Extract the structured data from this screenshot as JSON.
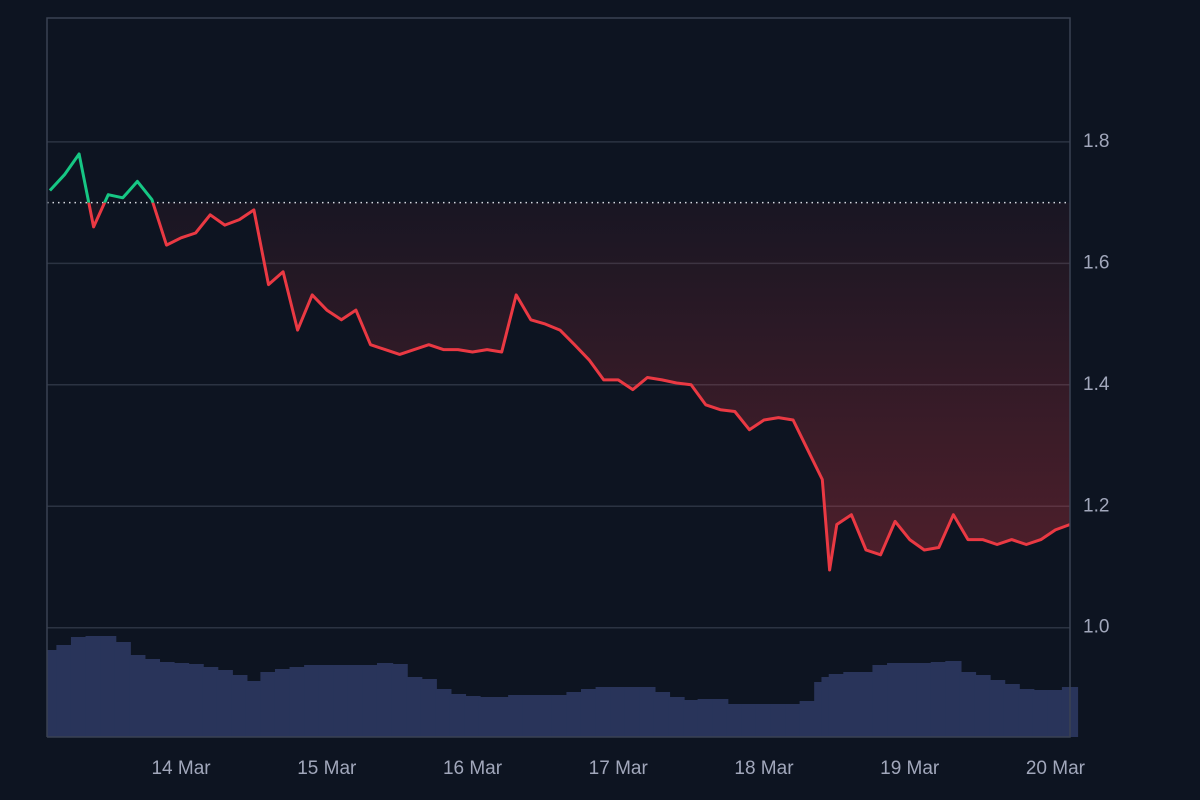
{
  "chart_data": {
    "type": "line",
    "x": [
      13.1,
      13.2,
      13.3,
      13.4,
      13.5,
      13.6,
      13.7,
      13.8,
      13.9,
      14.0,
      14.1,
      14.2,
      14.3,
      14.4,
      14.5,
      14.6,
      14.7,
      14.8,
      14.9,
      15.0,
      15.1,
      15.2,
      15.3,
      15.4,
      15.5,
      15.6,
      15.7,
      15.8,
      15.9,
      16.0,
      16.1,
      16.2,
      16.3,
      16.4,
      16.5,
      16.6,
      16.7,
      16.8,
      16.9,
      17.0,
      17.1,
      17.2,
      17.3,
      17.4,
      17.5,
      17.6,
      17.7,
      17.8,
      17.9,
      18.0,
      18.1,
      18.2,
      18.3,
      18.4,
      18.45,
      18.5,
      18.6,
      18.7,
      18.8,
      18.9,
      19.0,
      19.1,
      19.2,
      19.3,
      19.4,
      19.5,
      19.6,
      19.7,
      19.8,
      19.9,
      20.0,
      20.1
    ],
    "series": [
      {
        "color": "#ea3943",
        "color_above": "#16c784",
        "values": [
          1.72,
          1.746,
          1.78,
          1.66,
          1.713,
          1.708,
          1.735,
          1.705,
          1.63,
          1.642,
          1.65,
          1.68,
          1.663,
          1.672,
          1.688,
          1.565,
          1.586,
          1.49,
          1.548,
          1.523,
          1.507,
          1.523,
          1.466,
          1.458,
          1.45,
          1.458,
          1.466,
          1.458,
          1.458,
          1.454,
          1.458,
          1.454,
          1.548,
          1.507,
          1.5,
          1.49,
          1.466,
          1.441,
          1.408,
          1.408,
          1.392,
          1.412,
          1.408,
          1.403,
          1.4,
          1.367,
          1.359,
          1.356,
          1.326,
          1.342,
          1.346,
          1.342,
          1.293,
          1.244,
          1.095,
          1.17,
          1.186,
          1.128,
          1.12,
          1.175,
          1.145,
          1.128,
          1.132,
          1.186,
          1.145,
          1.145,
          1.137,
          1.145,
          1.137,
          1.145,
          1.161,
          1.17
        ]
      },
      {
        "type": "bar",
        "axis": "y2",
        "color": "#29345a",
        "values": [
          87,
          92,
          100,
          101,
          101,
          95,
          82,
          78,
          75,
          74,
          73,
          70,
          67,
          62,
          56,
          65,
          68,
          70,
          72,
          72,
          72,
          72,
          72,
          74,
          73,
          60,
          58,
          48,
          43,
          41,
          40,
          40,
          42,
          42,
          42,
          42,
          45,
          48,
          50,
          50,
          50,
          50,
          45,
          40,
          37,
          38,
          38,
          33,
          33,
          33,
          33,
          33,
          36,
          55,
          60,
          63,
          65,
          65,
          72,
          74,
          74,
          74,
          75,
          76,
          65,
          62,
          57,
          53,
          48,
          47,
          47,
          50
        ]
      }
    ],
    "baseline": 1.7,
    "xlim": [
      13.08,
      20.1
    ],
    "xticks": [
      {
        "value": 14,
        "label": "14 Mar"
      },
      {
        "value": 15,
        "label": "15 Mar"
      },
      {
        "value": 16,
        "label": "16 Mar"
      },
      {
        "value": 17,
        "label": "17 Mar"
      },
      {
        "value": 18,
        "label": "18 Mar"
      },
      {
        "value": 19,
        "label": "19 Mar"
      },
      {
        "value": 20,
        "label": "20 Mar"
      }
    ],
    "ylim": [
      0.82,
      2.004
    ],
    "yticks": [
      {
        "value": 1,
        "label": "1.0"
      },
      1.2,
      1.4,
      1.6,
      1.8
    ],
    "y2lim": [
      0,
      719
    ],
    "grid": true
  }
}
